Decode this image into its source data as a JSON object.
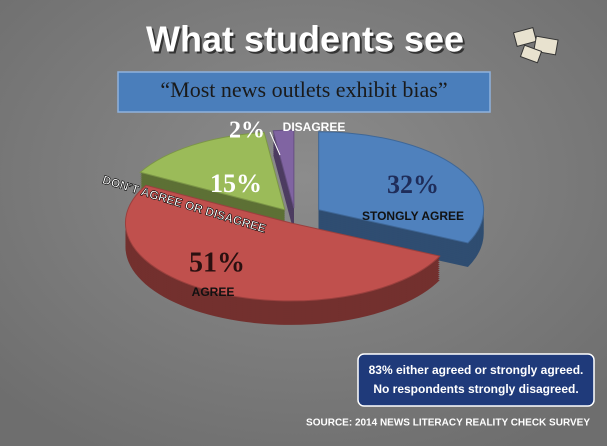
{
  "chart_data": {
    "type": "pie",
    "title": "What students see",
    "subtitle": "“Most news outlets exhibit bias”",
    "categories": [
      "STONGLY AGREE",
      "AGREE",
      "DON’T AGREE OR DISAGREE",
      "DISAGREE"
    ],
    "values": [
      32,
      51,
      15,
      2
    ],
    "value_labels": [
      "32%",
      "51%",
      "15%",
      "2%"
    ],
    "colors": [
      "#4f81bd",
      "#c0504d",
      "#9bbb59",
      "#8064a2"
    ],
    "annotation": [
      "83% either agreed or strongly agreed.",
      "No respondents strongly disagreed."
    ],
    "source": "SOURCE: 2014 NEWS LITERACY REALITY CHECK SURVEY"
  }
}
